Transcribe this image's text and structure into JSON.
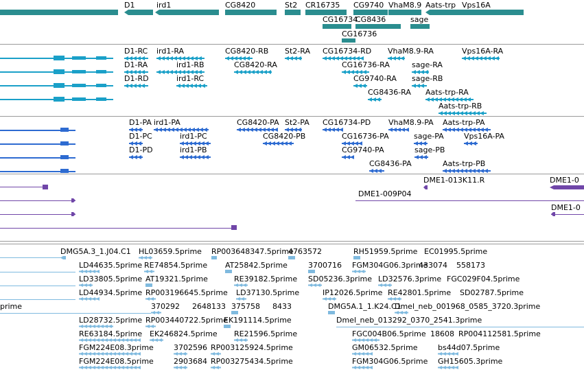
{
  "colors": {
    "gene": "#2a8d8f",
    "transcript_a": "#1aa0c8",
    "transcript_b": "#2d6bd1",
    "clone": "#7046a8",
    "est": "#7fbadf",
    "divider": "#9a9a9a"
  },
  "tracks": [
    {
      "id": "genes",
      "color_key": "gene",
      "labels": [
        "D1",
        "ird1",
        "CG8420",
        "St2",
        "CR16735",
        "CG9740",
        "VhaM8.9",
        "Aats-trp",
        "Vps16A",
        "CG16734",
        "CG8436",
        "sage",
        "CG16736"
      ]
    },
    {
      "id": "transcripts-a",
      "color_key": "transcript_a",
      "labels": [
        "D1-RC",
        "ird1-RA",
        "CG8420-RB",
        "St2-RA",
        "CG16734-RD",
        "VhaM8.9-RA",
        "Vps16A-RA",
        "D1-RA",
        "ird1-RB",
        "CG8420-RA",
        "CG16736-RA",
        "sage-RA",
        "D1-RD",
        "ird1-RC",
        "CG9740-RA",
        "sage-RB",
        "CG8436-RA",
        "Aats-trp-RA",
        "Aats-trp-RB"
      ]
    },
    {
      "id": "transcripts-b",
      "color_key": "transcript_b",
      "labels": [
        "D1-PA",
        "ird1-PA",
        "CG8420-PA",
        "St2-PA",
        "CG16734-PD",
        "VhaM8.9-PA",
        "Aats-trp-PA",
        "D1-PC",
        "ird1-PC",
        "CG8420-PB",
        "CG16736-PA",
        "sage-PA",
        "Vps16A-PA",
        "D1-PD",
        "ird1-PB",
        "CG9740-PA",
        "sage-PB",
        "CG8436-PA",
        "Aats-trp-PB"
      ]
    },
    {
      "id": "clones",
      "color_key": "clone",
      "labels": [
        "DME1-013K11.R",
        "DME1-0",
        "DME1-009P04",
        "DME1-0"
      ]
    },
    {
      "id": "ests",
      "color_key": "est",
      "labels": [
        "DMG5A.3_1.J04.C1",
        "HL03659.5prime",
        "RP003648347.5prime",
        "4763572",
        "RH51959.5prime",
        "EC01995.5prime",
        "LD44635.5prime",
        "RE74854.5prime",
        "AT25842.5prime",
        "3700716",
        "FGM304G06.3prime",
        "433074",
        "558173",
        "LD33805.5prime",
        "AT19321.5prime",
        "RE39182.5prime",
        "SD05236.3prime",
        "LD32576.3prime",
        "FGC029F04.5prime",
        "LD44934.5prime",
        "RP003196645.5prime",
        "LD37130.5prime",
        "IP12026.5prime",
        "RE42801.5prime",
        "SD02787.5prime",
        "prime",
        "370292",
        "2648133",
        "375758",
        "8433",
        "DMG5A.1_1.K24.C1",
        "Dmel_neb_001968_0585_3720.3prime",
        "LD28732.5prime",
        "RP003440722.5prime",
        "EK191114.5prime",
        "Dmel_neb_013292_0370_2541.3prime",
        "RE63184.5prime",
        "EK246824.5prime",
        "RE21596.5prime",
        "FGC004B06.5prime",
        "18608",
        "RP004112581.5prime",
        "FGM224E08.3prime",
        "3702596",
        "RP003125924.5prime",
        "GM06532.5prime",
        "bs44d07.5prime",
        "FGM224E08.5prime",
        "2903684",
        "RP003275434.5prime",
        "FGM304G06.5prime",
        "GH15605.3prime"
      ]
    }
  ]
}
